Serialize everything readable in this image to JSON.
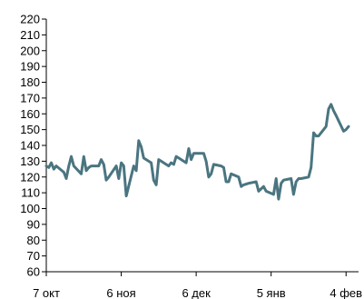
{
  "chart_data": {
    "type": "line",
    "title": "",
    "xlabel": "",
    "ylabel": "",
    "ylim": [
      60,
      220
    ],
    "y_ticks": [
      60,
      70,
      80,
      90,
      100,
      110,
      120,
      130,
      140,
      150,
      160,
      170,
      180,
      190,
      200,
      210,
      220
    ],
    "x_range": [
      "2013-10-07",
      "2014-02-09"
    ],
    "x_ticks": [
      {
        "date": "2013-10-07",
        "label": "7 окт"
      },
      {
        "date": "2013-11-06",
        "label": "6 ноя"
      },
      {
        "date": "2013-12-06",
        "label": "6 дек"
      },
      {
        "date": "2014-01-05",
        "label": "5 янв"
      },
      {
        "date": "2014-02-04",
        "label": "4 фев"
      }
    ],
    "grid": false,
    "line_color": "#4a7580",
    "series": [
      {
        "points": [
          {
            "x": "2013-10-07",
            "y": 127
          },
          {
            "x": "2013-10-08",
            "y": 126
          },
          {
            "x": "2013-10-09",
            "y": 129
          },
          {
            "x": "2013-10-10",
            "y": 125
          },
          {
            "x": "2013-10-11",
            "y": 127
          },
          {
            "x": "2013-10-14",
            "y": 123
          },
          {
            "x": "2013-10-15",
            "y": 119
          },
          {
            "x": "2013-10-16",
            "y": 127
          },
          {
            "x": "2013-10-17",
            "y": 133
          },
          {
            "x": "2013-10-18",
            "y": 127
          },
          {
            "x": "2013-10-21",
            "y": 122
          },
          {
            "x": "2013-10-22",
            "y": 133
          },
          {
            "x": "2013-10-23",
            "y": 124
          },
          {
            "x": "2013-10-24",
            "y": 126
          },
          {
            "x": "2013-10-25",
            "y": 127
          },
          {
            "x": "2013-10-28",
            "y": 127
          },
          {
            "x": "2013-10-29",
            "y": 131
          },
          {
            "x": "2013-10-30",
            "y": 128
          },
          {
            "x": "2013-10-31",
            "y": 118
          },
          {
            "x": "2013-11-01",
            "y": 120
          },
          {
            "x": "2013-11-04",
            "y": 127
          },
          {
            "x": "2013-11-05",
            "y": 119
          },
          {
            "x": "2013-11-06",
            "y": 129
          },
          {
            "x": "2013-11-07",
            "y": 127
          },
          {
            "x": "2013-11-08",
            "y": 108
          },
          {
            "x": "2013-11-11",
            "y": 127
          },
          {
            "x": "2013-11-12",
            "y": 124
          },
          {
            "x": "2013-11-13",
            "y": 143
          },
          {
            "x": "2013-11-14",
            "y": 139
          },
          {
            "x": "2013-11-15",
            "y": 132
          },
          {
            "x": "2013-11-18",
            "y": 129
          },
          {
            "x": "2013-11-19",
            "y": 118
          },
          {
            "x": "2013-11-20",
            "y": 115
          },
          {
            "x": "2013-11-21",
            "y": 131
          },
          {
            "x": "2013-11-22",
            "y": 130
          },
          {
            "x": "2013-11-25",
            "y": 127
          },
          {
            "x": "2013-11-26",
            "y": 129
          },
          {
            "x": "2013-11-27",
            "y": 128
          },
          {
            "x": "2013-11-28",
            "y": 133
          },
          {
            "x": "2013-11-29",
            "y": 132
          },
          {
            "x": "2013-12-02",
            "y": 129
          },
          {
            "x": "2013-12-03",
            "y": 138
          },
          {
            "x": "2013-12-04",
            "y": 131
          },
          {
            "x": "2013-12-05",
            "y": 135
          },
          {
            "x": "2013-12-06",
            "y": 135
          },
          {
            "x": "2013-12-09",
            "y": 135
          },
          {
            "x": "2013-12-10",
            "y": 130
          },
          {
            "x": "2013-12-11",
            "y": 120
          },
          {
            "x": "2013-12-12",
            "y": 122
          },
          {
            "x": "2013-12-13",
            "y": 128
          },
          {
            "x": "2013-12-16",
            "y": 127
          },
          {
            "x": "2013-12-17",
            "y": 126
          },
          {
            "x": "2013-12-18",
            "y": 117
          },
          {
            "x": "2013-12-19",
            "y": 117
          },
          {
            "x": "2013-12-20",
            "y": 122
          },
          {
            "x": "2013-12-23",
            "y": 120
          },
          {
            "x": "2013-12-24",
            "y": 114
          },
          {
            "x": "2013-12-25",
            "y": 115
          },
          {
            "x": "2013-12-27",
            "y": 116
          },
          {
            "x": "2013-12-30",
            "y": 117
          },
          {
            "x": "2013-12-31",
            "y": 111
          },
          {
            "x": "2014-01-02",
            "y": 114
          },
          {
            "x": "2014-01-03",
            "y": 111
          },
          {
            "x": "2014-01-06",
            "y": 109
          },
          {
            "x": "2014-01-07",
            "y": 119
          },
          {
            "x": "2014-01-08",
            "y": 106
          },
          {
            "x": "2014-01-09",
            "y": 116
          },
          {
            "x": "2014-01-10",
            "y": 118
          },
          {
            "x": "2014-01-13",
            "y": 119
          },
          {
            "x": "2014-01-14",
            "y": 109
          },
          {
            "x": "2014-01-15",
            "y": 117
          },
          {
            "x": "2014-01-16",
            "y": 119
          },
          {
            "x": "2014-01-17",
            "y": 119
          },
          {
            "x": "2014-01-20",
            "y": 120
          },
          {
            "x": "2014-01-21",
            "y": 126
          },
          {
            "x": "2014-01-22",
            "y": 148
          },
          {
            "x": "2014-01-23",
            "y": 146
          },
          {
            "x": "2014-01-24",
            "y": 146
          },
          {
            "x": "2014-01-27",
            "y": 152
          },
          {
            "x": "2014-01-28",
            "y": 163
          },
          {
            "x": "2014-01-29",
            "y": 166
          },
          {
            "x": "2014-01-30",
            "y": 162
          },
          {
            "x": "2014-01-31",
            "y": 159
          },
          {
            "x": "2014-02-03",
            "y": 149
          },
          {
            "x": "2014-02-04",
            "y": 150
          },
          {
            "x": "2014-02-05",
            "y": 152
          }
        ]
      }
    ]
  }
}
